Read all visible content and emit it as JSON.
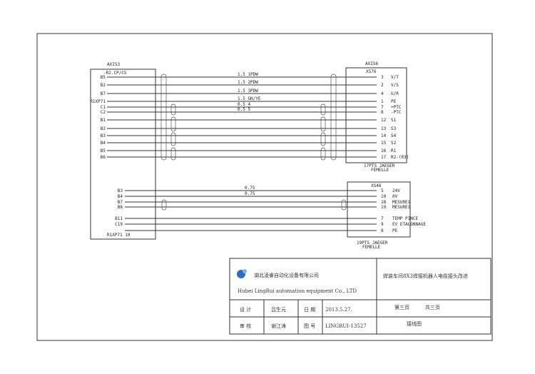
{
  "left_connector": {
    "name": "AXIS3",
    "sub": "-R2.CP/C5",
    "bottom_label": "R1XP71 10"
  },
  "right_connector_top": {
    "name": "AXIS6",
    "sub": "XS76",
    "footer_1": "17PTS JAEGER",
    "footer_2": "FEMELLE"
  },
  "right_connector_bottom": {
    "sub": "XS46",
    "footer_1": "19PTS JAEGER",
    "footer_2": "FEMELLE"
  },
  "top_wires": [
    {
      "from": "B5",
      "gauge": "1.5 1PDW",
      "pin": "3",
      "signal": "V/T"
    },
    {
      "from": "B2",
      "gauge": "1.5 2PDW",
      "pin": "2",
      "signal": "V/S"
    },
    {
      "from": "B7",
      "gauge": "1.5 3PDW",
      "pin": "4",
      "signal": "U/R"
    },
    {
      "from": "R1XP71",
      "gauge": "1.5 GN/YE",
      "pin": "1",
      "signal": "PE"
    },
    {
      "from": "C1",
      "gauge": "0.5 4",
      "pin": "7",
      "signal": "+PTC"
    },
    {
      "from": "C2",
      "gauge": "0.5 5",
      "pin": "8",
      "signal": "-PTC"
    },
    {
      "from": "B1",
      "gauge": "",
      "pin": "12",
      "signal": "S1"
    },
    {
      "from": "B2",
      "gauge": "",
      "pin": "13",
      "signal": "S3"
    },
    {
      "from": "B3",
      "gauge": "",
      "pin": "14",
      "signal": "S4"
    },
    {
      "from": "B4",
      "gauge": "",
      "pin": "15",
      "signal": "S2"
    },
    {
      "from": "B5",
      "gauge": "",
      "pin": "16",
      "signal": "R1"
    },
    {
      "from": "B6",
      "gauge": "",
      "pin": "17",
      "signal": "R2-(R3)"
    }
  ],
  "bottom_wires": [
    {
      "from": "B3",
      "gauge": "0.75",
      "pin": "5",
      "signal": "24V"
    },
    {
      "from": "B4",
      "gauge": "0.75",
      "pin": "10",
      "signal": "0V"
    },
    {
      "from": "B7",
      "gauge": "",
      "pin": "18",
      "signal": "MESURE1"
    },
    {
      "from": "B8",
      "gauge": "",
      "pin": "19",
      "signal": "MESURE1"
    },
    {
      "from": "B11",
      "gauge": "",
      "pin": "7",
      "signal": "TEMP PINCE"
    },
    {
      "from": "C19",
      "gauge": "",
      "pin": "9",
      "signal": "EV ETALONNAGE"
    },
    {
      "from": "",
      "gauge": "",
      "pin": "8",
      "signal": "PE"
    }
  ],
  "title_block": {
    "company_cn": "湖北凌睿自动化设备有限公司",
    "company_en": "Hubei LingRui automation equipment Co., LTD",
    "project": "焊装车间8X3焊接机器人电缆接头改进",
    "design_label": "设 计",
    "designer": "吕生元",
    "date_label": "日 期",
    "date": "2013.5.27.",
    "page": "第三页",
    "total": "共三页",
    "review_label": "审 核",
    "reviewer": "谢江涛",
    "drawing_no_label": "图 号",
    "drawing_no": "LINGRUI-13527",
    "drawing_type": "接线图",
    "logo_color": "#2a6fc0"
  }
}
